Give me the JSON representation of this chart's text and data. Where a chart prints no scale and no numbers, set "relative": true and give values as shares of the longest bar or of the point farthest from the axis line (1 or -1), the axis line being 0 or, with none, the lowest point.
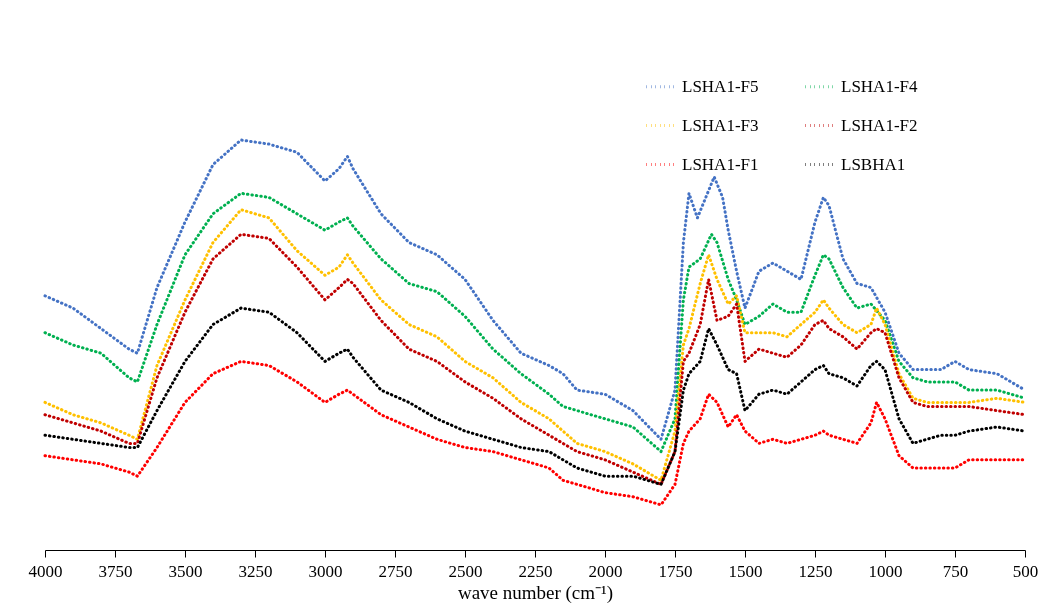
{
  "chart_data": {
    "type": "line",
    "relative": true,
    "xlabel": "wave number (cm⁻¹)",
    "xlim": [
      4000,
      500
    ],
    "xticks": [
      4000,
      3750,
      3500,
      3250,
      3000,
      2750,
      2500,
      2250,
      2000,
      1750,
      1500,
      1250,
      1000,
      750,
      500
    ],
    "grid": false,
    "legend": "top right",
    "marker": "none",
    "line_style": "dotted",
    "series": [
      {
        "name": "LSHA1-F5",
        "color": "#4472c4",
        "x": [
          4000,
          3900,
          3800,
          3700,
          3670,
          3600,
          3500,
          3400,
          3300,
          3200,
          3100,
          3000,
          2950,
          2920,
          2900,
          2800,
          2700,
          2600,
          2500,
          2400,
          2300,
          2200,
          2150,
          2100,
          2000,
          1900,
          1800,
          1750,
          1720,
          1700,
          1670,
          1640,
          1610,
          1580,
          1560,
          1530,
          1500,
          1450,
          1400,
          1350,
          1300,
          1250,
          1220,
          1200,
          1150,
          1100,
          1050,
          1000,
          950,
          900,
          850,
          800,
          750,
          700,
          600,
          500
        ],
        "values": [
          0.62,
          0.59,
          0.54,
          0.49,
          0.48,
          0.64,
          0.8,
          0.94,
          1.0,
          0.99,
          0.97,
          0.9,
          0.93,
          0.96,
          0.93,
          0.82,
          0.75,
          0.72,
          0.66,
          0.56,
          0.48,
          0.45,
          0.43,
          0.39,
          0.38,
          0.34,
          0.27,
          0.39,
          0.75,
          0.87,
          0.81,
          0.86,
          0.91,
          0.86,
          0.78,
          0.68,
          0.59,
          0.68,
          0.7,
          0.68,
          0.66,
          0.8,
          0.86,
          0.84,
          0.71,
          0.65,
          0.64,
          0.58,
          0.48,
          0.44,
          0.44,
          0.44,
          0.46,
          0.44,
          0.43,
          0.39
        ]
      },
      {
        "name": "LSHA1-F4",
        "color": "#00b050",
        "x": [
          4000,
          3900,
          3800,
          3700,
          3670,
          3600,
          3500,
          3400,
          3300,
          3200,
          3100,
          3000,
          2950,
          2920,
          2900,
          2800,
          2700,
          2600,
          2500,
          2400,
          2300,
          2200,
          2150,
          2100,
          2000,
          1900,
          1800,
          1750,
          1720,
          1700,
          1660,
          1620,
          1600,
          1560,
          1530,
          1500,
          1450,
          1400,
          1350,
          1300,
          1250,
          1220,
          1200,
          1150,
          1100,
          1050,
          1000,
          950,
          900,
          850,
          800,
          750,
          700,
          600,
          500
        ],
        "values": [
          0.53,
          0.5,
          0.48,
          0.42,
          0.41,
          0.55,
          0.72,
          0.82,
          0.87,
          0.86,
          0.82,
          0.78,
          0.8,
          0.81,
          0.79,
          0.71,
          0.65,
          0.63,
          0.57,
          0.49,
          0.43,
          0.38,
          0.35,
          0.34,
          0.32,
          0.3,
          0.24,
          0.32,
          0.61,
          0.69,
          0.71,
          0.77,
          0.75,
          0.66,
          0.61,
          0.55,
          0.57,
          0.6,
          0.58,
          0.58,
          0.67,
          0.72,
          0.71,
          0.64,
          0.59,
          0.6,
          0.56,
          0.46,
          0.42,
          0.41,
          0.41,
          0.41,
          0.39,
          0.39,
          0.37
        ]
      },
      {
        "name": "LSHA1-F3",
        "color": "#ffc000",
        "x": [
          4000,
          3900,
          3800,
          3700,
          3670,
          3600,
          3500,
          3400,
          3300,
          3200,
          3100,
          3000,
          2950,
          2920,
          2900,
          2800,
          2700,
          2600,
          2500,
          2400,
          2300,
          2200,
          2150,
          2100,
          2000,
          1900,
          1800,
          1750,
          1720,
          1700,
          1660,
          1630,
          1600,
          1560,
          1530,
          1500,
          1450,
          1400,
          1350,
          1300,
          1250,
          1220,
          1200,
          1150,
          1100,
          1050,
          1030,
          1000,
          950,
          900,
          850,
          800,
          750,
          700,
          600,
          500
        ],
        "values": [
          0.36,
          0.33,
          0.31,
          0.28,
          0.27,
          0.45,
          0.61,
          0.75,
          0.83,
          0.81,
          0.73,
          0.67,
          0.69,
          0.72,
          0.7,
          0.61,
          0.55,
          0.52,
          0.46,
          0.42,
          0.36,
          0.32,
          0.29,
          0.26,
          0.24,
          0.21,
          0.17,
          0.29,
          0.5,
          0.54,
          0.65,
          0.72,
          0.66,
          0.6,
          0.62,
          0.53,
          0.53,
          0.53,
          0.52,
          0.55,
          0.58,
          0.61,
          0.59,
          0.55,
          0.53,
          0.55,
          0.59,
          0.55,
          0.43,
          0.37,
          0.36,
          0.36,
          0.36,
          0.36,
          0.37,
          0.36
        ]
      },
      {
        "name": "LSHA1-F2",
        "color": "#c00000",
        "x": [
          4000,
          3900,
          3800,
          3700,
          3670,
          3600,
          3500,
          3400,
          3300,
          3200,
          3100,
          3000,
          2950,
          2920,
          2900,
          2800,
          2700,
          2600,
          2500,
          2400,
          2300,
          2200,
          2150,
          2100,
          2000,
          1900,
          1800,
          1750,
          1720,
          1700,
          1660,
          1630,
          1600,
          1560,
          1530,
          1500,
          1450,
          1400,
          1350,
          1300,
          1250,
          1220,
          1200,
          1150,
          1100,
          1050,
          1030,
          1000,
          950,
          900,
          850,
          800,
          750,
          700,
          600,
          500
        ],
        "values": [
          0.33,
          0.31,
          0.29,
          0.26,
          0.26,
          0.42,
          0.58,
          0.71,
          0.77,
          0.76,
          0.69,
          0.61,
          0.64,
          0.66,
          0.65,
          0.56,
          0.49,
          0.46,
          0.41,
          0.37,
          0.32,
          0.28,
          0.26,
          0.24,
          0.22,
          0.19,
          0.16,
          0.24,
          0.46,
          0.48,
          0.55,
          0.66,
          0.56,
          0.57,
          0.6,
          0.46,
          0.49,
          0.48,
          0.47,
          0.5,
          0.55,
          0.56,
          0.54,
          0.52,
          0.49,
          0.53,
          0.54,
          0.53,
          0.42,
          0.36,
          0.35,
          0.35,
          0.35,
          0.35,
          0.34,
          0.33
        ]
      },
      {
        "name": "LSHA1-F1",
        "color": "#ff0000",
        "x": [
          4000,
          3900,
          3800,
          3700,
          3670,
          3600,
          3500,
          3400,
          3300,
          3200,
          3100,
          3000,
          2950,
          2920,
          2900,
          2800,
          2700,
          2600,
          2500,
          2400,
          2300,
          2200,
          2150,
          2100,
          2000,
          1900,
          1800,
          1750,
          1720,
          1700,
          1660,
          1630,
          1600,
          1560,
          1530,
          1500,
          1450,
          1400,
          1350,
          1300,
          1250,
          1220,
          1200,
          1150,
          1100,
          1050,
          1030,
          1000,
          950,
          900,
          850,
          800,
          750,
          700,
          600,
          500
        ],
        "values": [
          0.23,
          0.22,
          0.21,
          0.19,
          0.18,
          0.25,
          0.36,
          0.43,
          0.46,
          0.45,
          0.41,
          0.36,
          0.38,
          0.39,
          0.38,
          0.33,
          0.3,
          0.27,
          0.25,
          0.24,
          0.22,
          0.2,
          0.17,
          0.16,
          0.14,
          0.13,
          0.11,
          0.16,
          0.26,
          0.29,
          0.32,
          0.38,
          0.36,
          0.3,
          0.33,
          0.29,
          0.26,
          0.27,
          0.26,
          0.27,
          0.28,
          0.29,
          0.28,
          0.27,
          0.26,
          0.31,
          0.36,
          0.32,
          0.23,
          0.2,
          0.2,
          0.2,
          0.2,
          0.22,
          0.22,
          0.22
        ]
      },
      {
        "name": "LSBHA1",
        "color": "#000000",
        "x": [
          4000,
          3900,
          3800,
          3700,
          3670,
          3600,
          3500,
          3400,
          3300,
          3200,
          3100,
          3000,
          2950,
          2920,
          2900,
          2800,
          2700,
          2600,
          2500,
          2400,
          2300,
          2200,
          2150,
          2100,
          2000,
          1900,
          1800,
          1750,
          1720,
          1700,
          1660,
          1630,
          1600,
          1560,
          1530,
          1500,
          1450,
          1400,
          1350,
          1300,
          1250,
          1220,
          1200,
          1150,
          1100,
          1050,
          1030,
          1000,
          950,
          900,
          850,
          800,
          750,
          700,
          600,
          500
        ],
        "values": [
          0.28,
          0.27,
          0.26,
          0.25,
          0.25,
          0.34,
          0.46,
          0.55,
          0.59,
          0.58,
          0.53,
          0.46,
          0.48,
          0.49,
          0.47,
          0.39,
          0.36,
          0.32,
          0.29,
          0.27,
          0.25,
          0.24,
          0.22,
          0.2,
          0.18,
          0.18,
          0.16,
          0.24,
          0.39,
          0.43,
          0.46,
          0.54,
          0.5,
          0.44,
          0.43,
          0.34,
          0.38,
          0.39,
          0.38,
          0.41,
          0.44,
          0.45,
          0.43,
          0.42,
          0.4,
          0.45,
          0.46,
          0.44,
          0.32,
          0.26,
          0.27,
          0.28,
          0.28,
          0.29,
          0.3,
          0.29
        ]
      }
    ]
  }
}
